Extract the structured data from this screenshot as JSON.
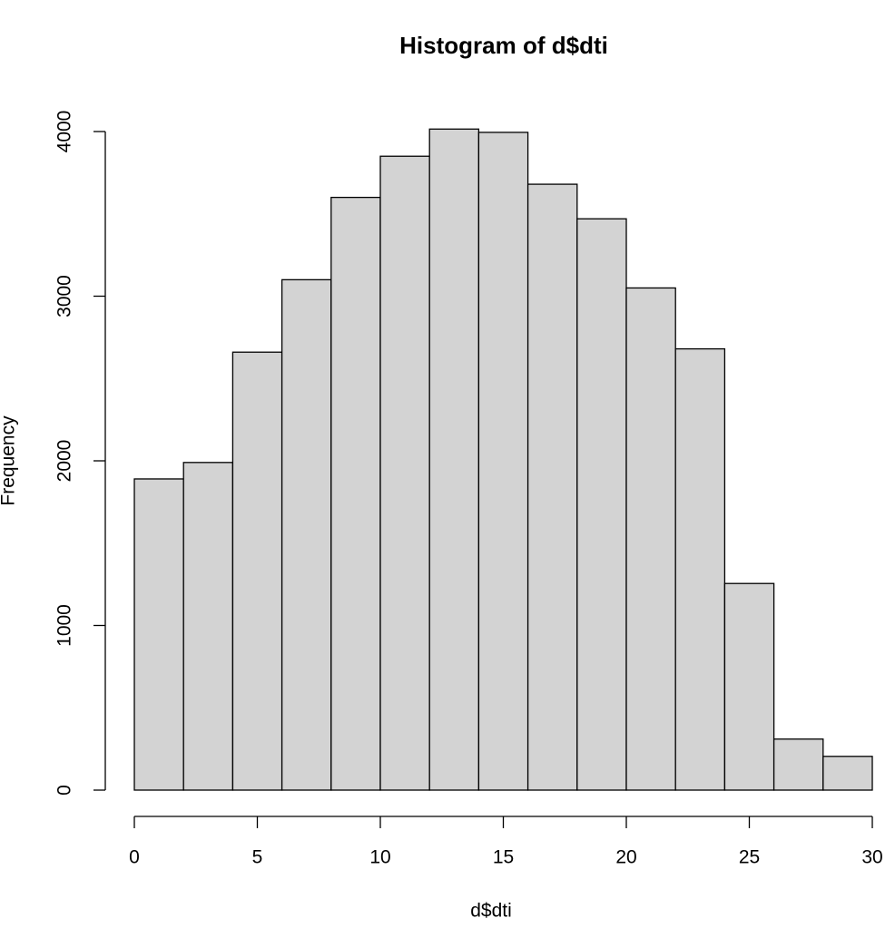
{
  "chart_data": {
    "type": "histogram",
    "title": "Histogram of d$dti",
    "x_label": "d$dti",
    "y_label": "Frequency",
    "bins": [
      0,
      2,
      4,
      6,
      8,
      10,
      12,
      14,
      16,
      18,
      20,
      22,
      24,
      26,
      28,
      30
    ],
    "values": [
      1890,
      1990,
      2660,
      3100,
      3600,
      3850,
      4015,
      3995,
      3680,
      3470,
      3050,
      2680,
      1255,
      310,
      205
    ],
    "color": "#d3d3d3",
    "xlim": [
      0,
      30
    ],
    "xticks": [
      0,
      5,
      10,
      15,
      20,
      25,
      30
    ],
    "ylim": [
      0,
      4000
    ],
    "yticks": [
      0,
      1000,
      2000,
      3000,
      4000
    ]
  }
}
